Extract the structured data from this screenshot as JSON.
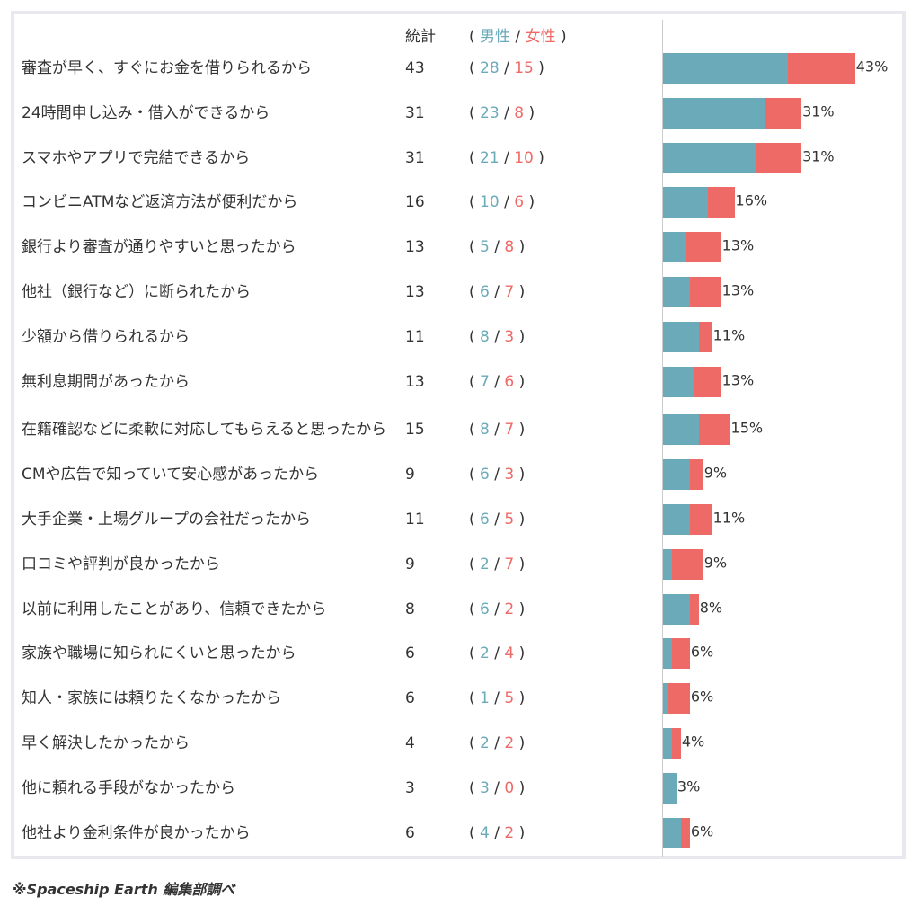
{
  "header": {
    "total_label": "統計",
    "open_paren": "(",
    "male_label": "男性",
    "slash": " / ",
    "female_label": "女性",
    "close_paren": ")"
  },
  "chart_data": {
    "type": "bar",
    "stacked": true,
    "orientation": "horizontal",
    "xlim": [
      0,
      100
    ],
    "categories": [
      "審査が早く、すぐにお金を借りられるから",
      "24時間申し込み・借入ができるから",
      "スマホやアプリで完結できるから",
      "コンビニATMなど返済方法が便利だから",
      "銀行より審査が通りやすいと思ったから",
      "他社（銀行など）に断られたから",
      "少額から借りられるから",
      "無利息期間があったから",
      "在籍確認などに柔軟に対応してもらえると思ったから",
      "CMや広告で知っていて安心感があったから",
      "大手企業・上場グループの会社だったから",
      "口コミや評判が良かったから",
      "以前に利用したことがあり、信頼できたから",
      "家族や職場に知られにくいと思ったから",
      "知人・家族には頼りたくなかったから",
      "早く解決したかったから",
      "他に頼れる手段がなかったから",
      "他社より金利条件が良かったから"
    ],
    "totals": [
      43,
      31,
      31,
      16,
      13,
      13,
      11,
      13,
      15,
      9,
      11,
      9,
      8,
      6,
      6,
      4,
      3,
      6
    ],
    "percent_labels": [
      "43%",
      "31%",
      "31%",
      "16%",
      "13%",
      "13%",
      "11%",
      "13%",
      "15%",
      "9%",
      "11%",
      "9%",
      "8%",
      "6%",
      "6%",
      "4%",
      "3%",
      "6%"
    ],
    "series": [
      {
        "name": "男性",
        "color": "#6aaab9",
        "values": [
          28,
          23,
          21,
          10,
          5,
          6,
          8,
          7,
          8,
          6,
          6,
          2,
          6,
          2,
          1,
          2,
          3,
          4
        ]
      },
      {
        "name": "女性",
        "color": "#ee6a66",
        "values": [
          15,
          8,
          10,
          6,
          8,
          7,
          3,
          6,
          7,
          3,
          5,
          7,
          2,
          4,
          5,
          2,
          0,
          2
        ]
      }
    ]
  },
  "footer": {
    "source": "※Spaceship Earth 編集部調べ"
  }
}
